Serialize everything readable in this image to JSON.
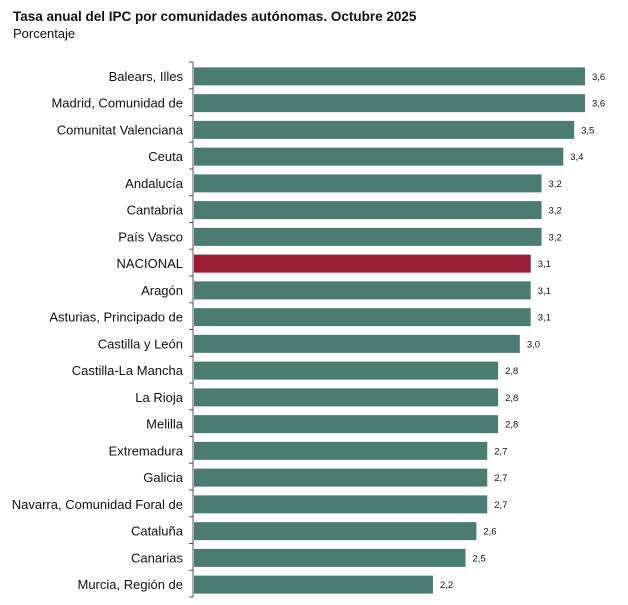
{
  "chart_data": {
    "type": "bar",
    "orientation": "horizontal",
    "title": "Tasa anual del IPC por comunidades autónomas. Octubre 2025",
    "subtitle": "Porcentaje",
    "categories": [
      "Balears, Illes",
      "Madrid, Comunidad de",
      "Comunitat Valenciana",
      "Ceuta",
      "Andalucía",
      "Cantabria",
      "País Vasco",
      "NACIONAL",
      "Aragón",
      "Asturias, Principado de",
      "Castilla y León",
      "Castilla-La Mancha",
      "La Rioja",
      "Melilla",
      "Extremadura",
      "Galicia",
      "Navarra, Comunidad Foral de",
      "Cataluña",
      "Canarias",
      "Murcia, Región de"
    ],
    "values": [
      3.6,
      3.6,
      3.5,
      3.4,
      3.2,
      3.2,
      3.2,
      3.1,
      3.1,
      3.1,
      3.0,
      2.8,
      2.8,
      2.8,
      2.7,
      2.7,
      2.7,
      2.6,
      2.5,
      2.2
    ],
    "data_labels": [
      "3,6",
      "3,6",
      "3,5",
      "3,4",
      "3,2",
      "3,2",
      "3,2",
      "3,1",
      "3,1",
      "3,1",
      "3,0",
      "2,8",
      "2,8",
      "2,8",
      "2,7",
      "2,7",
      "2,7",
      "2,6",
      "2,5",
      "2,2"
    ],
    "highlight_category": "NACIONAL",
    "xlim": [
      0,
      3.6
    ],
    "grid": false,
    "legend": "none",
    "colors": {
      "bar": "#4a7c72",
      "highlight": "#981d32",
      "axis": "#555555"
    }
  }
}
